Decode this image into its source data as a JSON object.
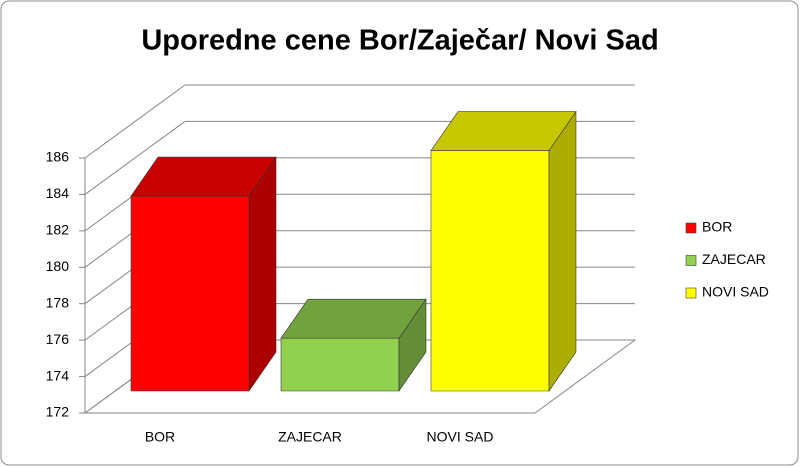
{
  "chart_data": {
    "type": "bar3d",
    "title": "Uporedne cene Bor/Zaječar/ Novi Sad",
    "categories": [
      "BOR",
      "ZAJECAR",
      "NOVI SAD"
    ],
    "series": [
      {
        "name": "BOR",
        "color": "#ff0000",
        "values": [
          182.7,
          null,
          null
        ]
      },
      {
        "name": "ZAJECAR",
        "color": "#92d050",
        "values": [
          null,
          174.9,
          null
        ]
      },
      {
        "name": "NOVI SAD",
        "color": "#ffff00",
        "values": [
          null,
          null,
          185.2
        ]
      }
    ],
    "ylim": [
      172,
      186
    ],
    "yticks": [
      172,
      174,
      176,
      178,
      180,
      182,
      184,
      186
    ],
    "grid": true,
    "legend": "right"
  }
}
